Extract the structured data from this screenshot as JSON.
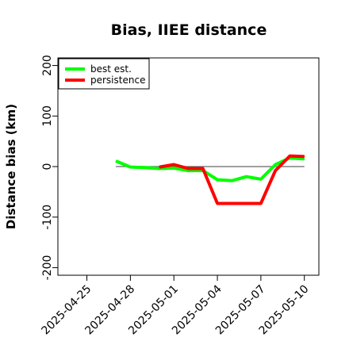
{
  "chart_data": {
    "type": "line",
    "title": "Bias, IIEE distance",
    "xlabel": "",
    "ylabel": "Distance bias (km)",
    "xlim": [
      "2025-04-23",
      "2025-05-11"
    ],
    "ylim": [
      -215,
      215
    ],
    "y_ticks": [
      -200,
      -100,
      0,
      100,
      200
    ],
    "x_ticks": [
      "2025-04-25",
      "2025-04-28",
      "2025-05-01",
      "2025-05-04",
      "2025-05-07",
      "2025-05-10"
    ],
    "grid": false,
    "reference_line": {
      "y": 0,
      "x_from": "2025-04-27",
      "x_to": "2025-05-10",
      "color": "#666666"
    },
    "legend": {
      "placement": "top-left",
      "boxed": true
    },
    "series": [
      {
        "name": "best est.",
        "color": "#00ff00",
        "points": [
          {
            "x": "2025-04-27",
            "y": 11
          },
          {
            "x": "2025-04-28",
            "y": -1
          },
          {
            "x": "2025-04-29",
            "y": -2
          },
          {
            "x": "2025-04-30",
            "y": -4
          },
          {
            "x": "2025-05-01",
            "y": -3
          },
          {
            "x": "2025-05-02",
            "y": -8
          },
          {
            "x": "2025-05-03",
            "y": -8
          },
          {
            "x": "2025-05-04",
            "y": -26
          },
          {
            "x": "2025-05-05",
            "y": -28
          },
          {
            "x": "2025-05-06",
            "y": -20
          },
          {
            "x": "2025-05-07",
            "y": -25
          },
          {
            "x": "2025-05-08",
            "y": 4
          },
          {
            "x": "2025-05-09",
            "y": 17
          },
          {
            "x": "2025-05-10",
            "y": 15
          }
        ]
      },
      {
        "name": "persistence",
        "color": "#ff0000",
        "points": [
          {
            "x": "2025-04-30",
            "y": -1
          },
          {
            "x": "2025-05-01",
            "y": 4
          },
          {
            "x": "2025-05-02",
            "y": -4
          },
          {
            "x": "2025-05-03",
            "y": -4
          },
          {
            "x": "2025-05-04",
            "y": -73
          },
          {
            "x": "2025-05-05",
            "y": -73
          },
          {
            "x": "2025-05-06",
            "y": -73
          },
          {
            "x": "2025-05-07",
            "y": -73
          },
          {
            "x": "2025-05-08",
            "y": -8
          },
          {
            "x": "2025-05-09",
            "y": 21
          },
          {
            "x": "2025-05-10",
            "y": 20
          }
        ]
      }
    ]
  }
}
